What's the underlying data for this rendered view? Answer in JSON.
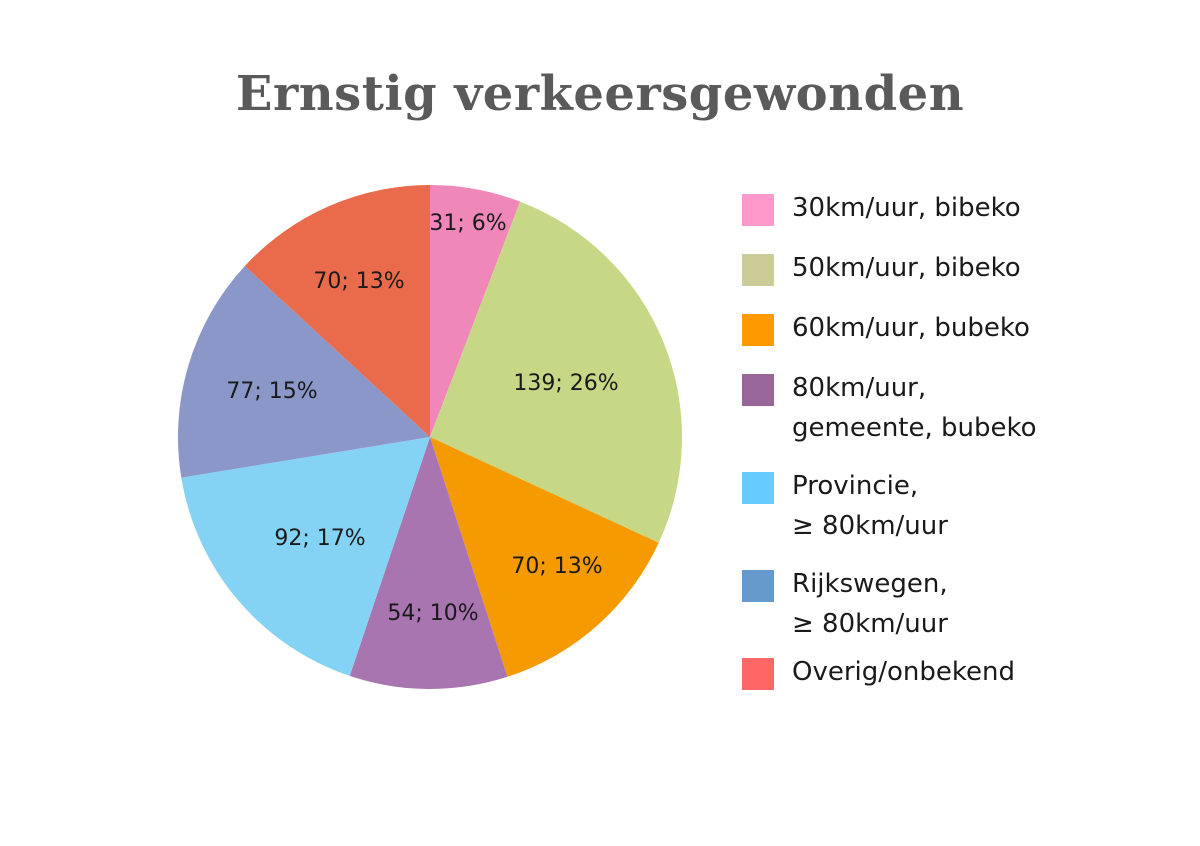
{
  "chart_data": {
    "type": "pie",
    "title": "Ernstig verkeersgewonden",
    "slices": [
      {
        "value": 31,
        "percent": 6,
        "label": "31; 6%",
        "color": "#ef88b9"
      },
      {
        "value": 139,
        "percent": 26,
        "label": "139; 26%",
        "color": "#c6d886"
      },
      {
        "value": 70,
        "percent": 13,
        "label": "70; 13%",
        "color": "#f59a00"
      },
      {
        "value": 54,
        "percent": 10,
        "label": "54; 10%",
        "color": "#a875b0"
      },
      {
        "value": 92,
        "percent": 17,
        "label": "92; 17%",
        "color": "#84d3f5"
      },
      {
        "value": 77,
        "percent": 15,
        "label": "77; 15%",
        "color": "#8b97c8"
      },
      {
        "value": 70,
        "percent": 13,
        "label": "70; 13%",
        "color": "#e96b4c"
      }
    ],
    "legend": {
      "placement": "right",
      "entries": [
        {
          "label": "30km/uur, bibeko",
          "color": "#ff99cc"
        },
        {
          "label": "50km/uur, bibeko",
          "color": "#cccc99"
        },
        {
          "label": "60km/uur, bubeko",
          "color": "#ff9900"
        },
        {
          "label": "80km/uur,\ngemeente, bubeko",
          "color": "#996699"
        },
        {
          "label": "Provincie,\n≥ 80km/uur",
          "color": "#66ccff"
        },
        {
          "label": "Rijkswegen,\n≥ 80km/uur",
          "color": "#6699cc"
        },
        {
          "label": "Overig/onbekend",
          "color": "#ff6666"
        }
      ]
    }
  }
}
